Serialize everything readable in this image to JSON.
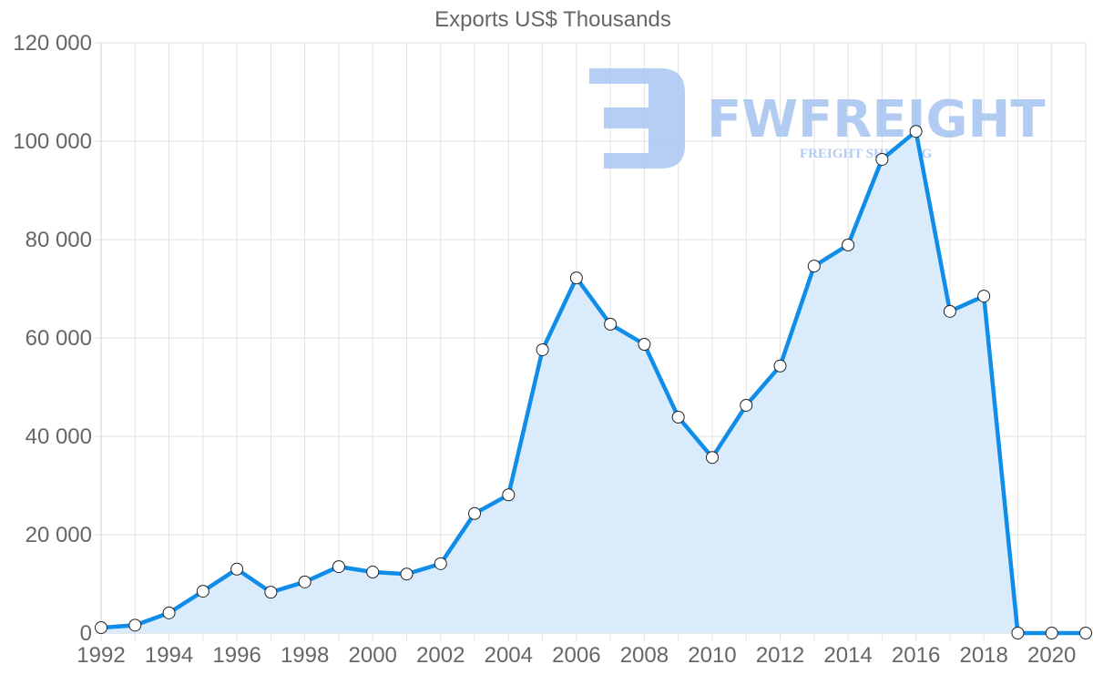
{
  "chart_data": {
    "type": "area",
    "title": "Exports US$ Thousands",
    "xlabel": "",
    "ylabel": "",
    "x": [
      1992,
      1993,
      1994,
      1995,
      1996,
      1997,
      1998,
      1999,
      2000,
      2001,
      2002,
      2003,
      2004,
      2005,
      2006,
      2007,
      2008,
      2009,
      2010,
      2011,
      2012,
      2013,
      2014,
      2015,
      2016,
      2017,
      2018,
      2019,
      2020,
      2021
    ],
    "series": [
      {
        "name": "Exports US$ Thousands",
        "values": [
          1100,
          1600,
          4100,
          8500,
          13000,
          8300,
          10400,
          13500,
          12400,
          12000,
          14100,
          24300,
          28100,
          57600,
          72200,
          62800,
          58700,
          43900,
          35700,
          46300,
          54300,
          74600,
          78900,
          96300,
          102000,
          65400,
          68500,
          0,
          0,
          0
        ]
      }
    ],
    "ylim": [
      0,
      120000
    ],
    "xlim": [
      1992,
      2021
    ],
    "y_ticks": [
      "0",
      "20 000",
      "40 000",
      "60 000",
      "80 000",
      "100 000",
      "120 000"
    ],
    "y_tick_values": [
      0,
      20000,
      40000,
      60000,
      80000,
      100000,
      120000
    ],
    "x_ticks": [
      "1992",
      "1994",
      "1996",
      "1998",
      "2000",
      "2002",
      "2004",
      "2006",
      "2008",
      "2010",
      "2012",
      "2014",
      "2016",
      "2018",
      "2020"
    ],
    "grid": true,
    "legend": "none",
    "colors": {
      "line": "#0f8de8",
      "fill": "#d8ebfc",
      "point_fill": "#ffffff",
      "point_stroke": "#222222",
      "grid": "#e2e2e2",
      "text": "#666666"
    }
  },
  "watermark": {
    "brand": "FWFREIGHT",
    "tagline": "FREIGHT SHIPPING",
    "color": "#a9c6f2"
  }
}
